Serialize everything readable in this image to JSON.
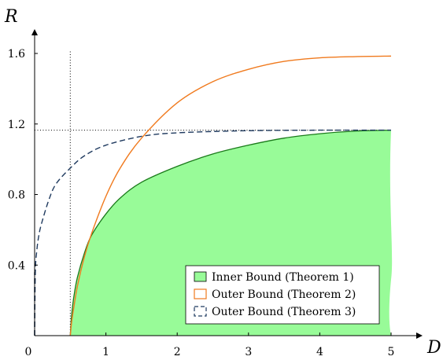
{
  "chart_data": {
    "type": "area",
    "xlabel": "D",
    "ylabel": "R",
    "xlim": [
      0,
      5.3
    ],
    "ylim": [
      0,
      1.72
    ],
    "x_ticks": [
      "0",
      "1",
      "2",
      "3",
      "4",
      "5"
    ],
    "y_ticks": [
      "0.4",
      "0.8",
      "1.2",
      "1.6"
    ],
    "grid": false,
    "legend_position": "bottom-right",
    "reference_lines": {
      "vertical_x": 0.5,
      "horizontal_y": 1.165
    },
    "series": [
      {
        "name": "Inner Bound (Theorem 1)",
        "style": "filled-area",
        "line_color": "#1a7a1a",
        "fill_color": "#98fb98",
        "x": [
          0.5,
          0.52,
          0.55,
          0.6,
          0.7,
          0.8,
          1.0,
          1.2,
          1.5,
          2.0,
          2.5,
          3.0,
          3.5,
          4.0,
          4.5,
          5.0
        ],
        "y": [
          0.0,
          0.12,
          0.22,
          0.33,
          0.47,
          0.57,
          0.69,
          0.78,
          0.87,
          0.96,
          1.03,
          1.08,
          1.12,
          1.145,
          1.16,
          1.165
        ]
      },
      {
        "name": "Outer Bound (Theorem 2)",
        "style": "solid",
        "line_color": "#f07a1e",
        "x": [
          0.5,
          0.52,
          0.55,
          0.6,
          0.7,
          0.8,
          1.0,
          1.2,
          1.5,
          2.0,
          2.5,
          3.0,
          3.5,
          4.0,
          4.5,
          5.0
        ],
        "y": [
          0.0,
          0.08,
          0.16,
          0.28,
          0.45,
          0.58,
          0.79,
          0.95,
          1.12,
          1.32,
          1.44,
          1.51,
          1.555,
          1.575,
          1.582,
          1.585
        ]
      },
      {
        "name": "Outer Bound (Theorem 3)",
        "style": "dashed",
        "line_color": "#1f3a5f",
        "x": [
          0.0,
          0.01,
          0.03,
          0.06,
          0.1,
          0.2,
          0.3,
          0.5,
          0.7,
          1.0,
          1.5,
          2.0,
          3.0,
          4.0,
          5.0
        ],
        "y": [
          0.0,
          0.36,
          0.48,
          0.57,
          0.64,
          0.77,
          0.86,
          0.95,
          1.02,
          1.08,
          1.13,
          1.15,
          1.162,
          1.165,
          1.165
        ]
      }
    ]
  }
}
